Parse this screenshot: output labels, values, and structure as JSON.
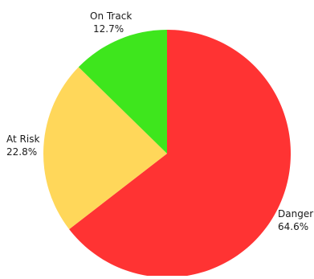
{
  "chart_data": {
    "type": "pie",
    "title": "",
    "slices": [
      {
        "label": "Danger",
        "value_label": "64.6%",
        "value": 64.6,
        "color": "#ff3333"
      },
      {
        "label": "At Risk",
        "value_label": "22.8%",
        "value": 22.8,
        "color": "#ffd75a"
      },
      {
        "label": "On Track",
        "value_label": "12.7%",
        "value": 12.7,
        "color": "#3ee61d"
      }
    ],
    "start_angle_deg": 0,
    "direction": "clockwise",
    "legend": "none",
    "labels_outside": true
  }
}
